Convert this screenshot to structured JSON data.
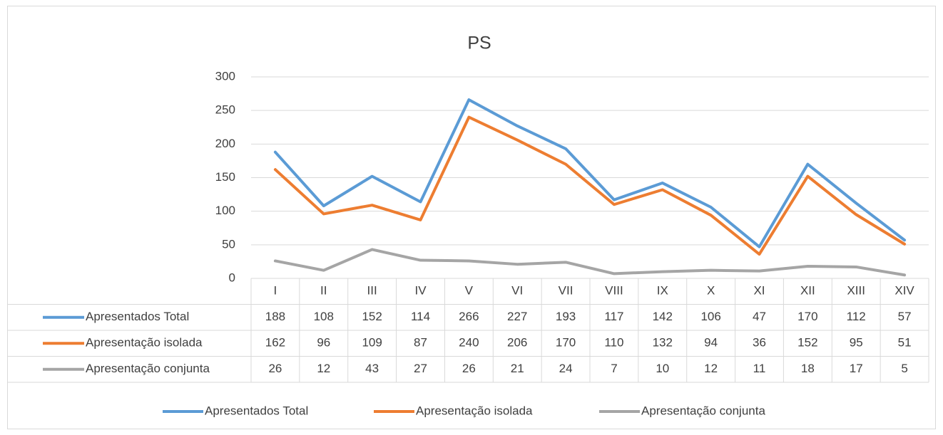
{
  "chart_data": {
    "type": "line",
    "title": "PS",
    "categories": [
      "I",
      "II",
      "III",
      "IV",
      "V",
      "VI",
      "VII",
      "VIII",
      "IX",
      "X",
      "XI",
      "XII",
      "XIII",
      "XIV"
    ],
    "series": [
      {
        "name": "Apresentados Total",
        "color": "#5b9bd5",
        "values": [
          188,
          108,
          152,
          114,
          266,
          227,
          193,
          117,
          142,
          106,
          47,
          170,
          112,
          57
        ]
      },
      {
        "name": "Apresentação isolada",
        "color": "#ed7d31",
        "values": [
          162,
          96,
          109,
          87,
          240,
          206,
          170,
          110,
          132,
          94,
          36,
          152,
          95,
          51
        ]
      },
      {
        "name": "Apresentação conjunta",
        "color": "#a5a5a5",
        "values": [
          26,
          12,
          43,
          27,
          26,
          21,
          24,
          7,
          10,
          12,
          11,
          18,
          17,
          5
        ]
      }
    ],
    "ylim": [
      0,
      300
    ],
    "yticks": [
      0,
      50,
      100,
      150,
      200,
      250,
      300
    ],
    "grid": true,
    "legend": "bottom",
    "data_table": true
  }
}
